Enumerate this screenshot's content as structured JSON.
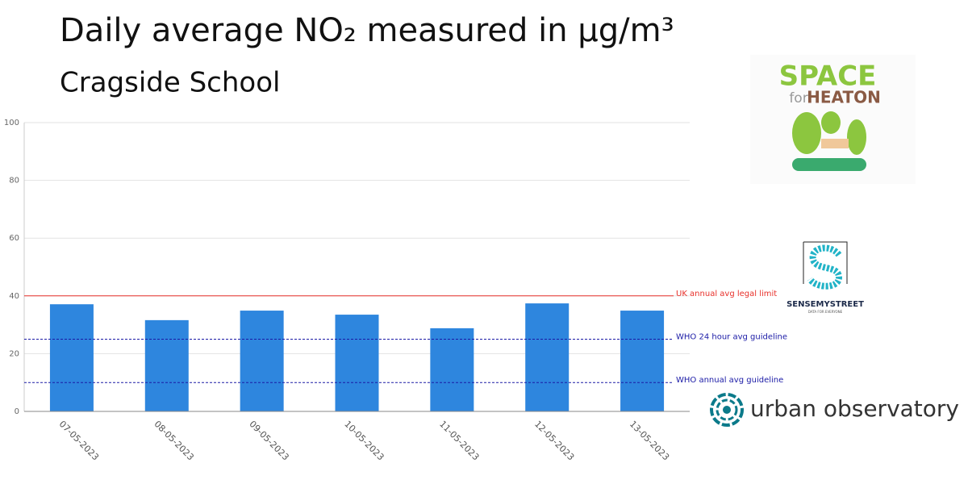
{
  "chart_data": {
    "type": "bar",
    "title": "Daily average NO₂ measured in µg/m³",
    "subtitle": "Cragside School",
    "categories": [
      "07-05-2023",
      "08-05-2023",
      "09-05-2023",
      "10-05-2023",
      "11-05-2023",
      "12-05-2023",
      "13-05-2023"
    ],
    "values": [
      37.1,
      31.6,
      34.9,
      33.5,
      28.8,
      37.4,
      34.9
    ],
    "color": "#2e86de",
    "ylim": [
      0,
      100
    ],
    "yticks": [
      0,
      20,
      40,
      60,
      80,
      100
    ],
    "grid": true,
    "reference_lines": [
      {
        "label": "UK annual avg legal limit",
        "value": 40,
        "color": "#e8302a",
        "style": "solid"
      },
      {
        "label": "WHO 24 hour avg guideline",
        "value": 25,
        "color": "#1a1aa6",
        "style": "dotted"
      },
      {
        "label": "WHO annual avg guideline",
        "value": 10,
        "color": "#1a1aa6",
        "style": "dotted"
      }
    ]
  },
  "logos": {
    "space": "SPACE",
    "for": "for",
    "heaton": "HEATON",
    "sense": "SENSEMYSTREET",
    "sense_tagline": "DATA FOR EVERYONE",
    "urban": "urban observatory"
  }
}
